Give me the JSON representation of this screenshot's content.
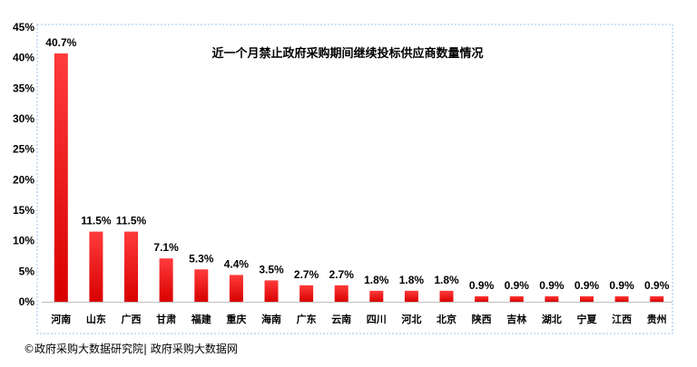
{
  "chart_data": {
    "type": "bar",
    "title": "近一个月禁止政府采购期间继续投标供应商数量情况",
    "categories": [
      "河南",
      "山东",
      "广西",
      "甘肃",
      "福建",
      "重庆",
      "海南",
      "广东",
      "云南",
      "四川",
      "河北",
      "北京",
      "陕西",
      "吉林",
      "湖北",
      "宁夏",
      "江西",
      "贵州"
    ],
    "values": [
      40.7,
      11.5,
      11.5,
      7.1,
      5.3,
      4.4,
      3.5,
      2.7,
      2.7,
      1.8,
      1.8,
      1.8,
      0.9,
      0.9,
      0.9,
      0.9,
      0.9,
      0.9
    ],
    "value_labels": [
      "40.7%",
      "11.5%",
      "11.5%",
      "7.1%",
      "5.3%",
      "4.4%",
      "3.5%",
      "2.7%",
      "2.7%",
      "1.8%",
      "1.8%",
      "1.8%",
      "0.9%",
      "0.9%",
      "0.9%",
      "0.9%",
      "0.9%",
      "0.9%"
    ],
    "y_ticks": [
      0,
      5,
      10,
      15,
      20,
      25,
      30,
      35,
      40,
      45
    ],
    "y_tick_labels": [
      "0%",
      "5%",
      "10%",
      "15%",
      "20%",
      "25%",
      "30%",
      "35%",
      "40%",
      "45%"
    ],
    "ylim": [
      0,
      45
    ],
    "xlabel": "",
    "ylabel": "",
    "grid": false,
    "legend": false,
    "colors": {
      "bar_top": "#ff3b3b",
      "bar_bottom": "#d80000",
      "frame": "#9cc3e6"
    }
  },
  "source_text": "©政府采购大数据研究院|  政府采购大数据网"
}
